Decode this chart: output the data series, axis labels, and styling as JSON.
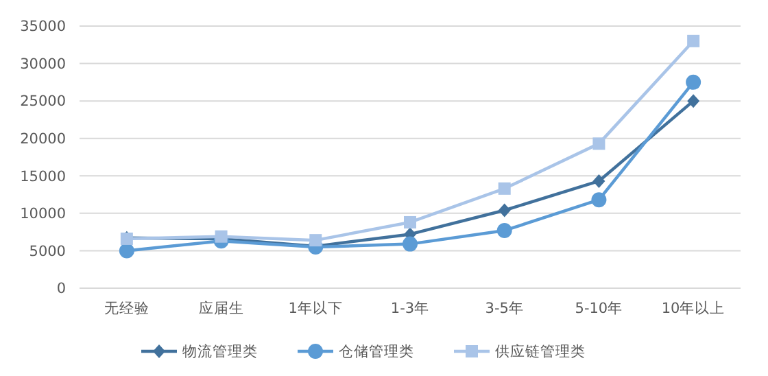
{
  "chart_data": {
    "type": "line",
    "categories": [
      "无经验",
      "应届生",
      "1年以下",
      "1-3年",
      "3-5年",
      "5-10年",
      "10年以上"
    ],
    "series": [
      {
        "name": "物流管理类",
        "color": "#41719c",
        "marker": "diamond",
        "values": [
          6700,
          6600,
          5600,
          7200,
          10400,
          14300,
          25000
        ]
      },
      {
        "name": "仓储管理类",
        "color": "#5b9bd5",
        "marker": "circle",
        "values": [
          5000,
          6300,
          5500,
          5900,
          7700,
          11800,
          27500
        ]
      },
      {
        "name": "供应链管理类",
        "color": "#a9c4e8",
        "marker": "square",
        "values": [
          6600,
          6900,
          6400,
          8800,
          13300,
          19300,
          33000
        ]
      }
    ],
    "ylim": [
      0,
      35000
    ],
    "yticks": [
      0,
      5000,
      10000,
      15000,
      20000,
      25000,
      30000,
      35000
    ],
    "grid": "y",
    "legend": "bottom",
    "line_style": "solid"
  }
}
